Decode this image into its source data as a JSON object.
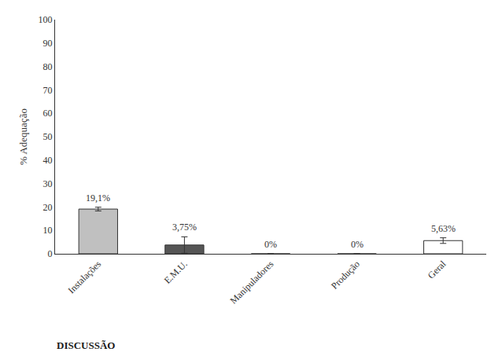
{
  "chart_data": {
    "type": "bar",
    "categories": [
      "Instalações",
      "E.M.U.",
      "Manipuladores",
      "Produção",
      "Geral"
    ],
    "values": [
      19.1,
      3.75,
      0.0,
      0.0,
      5.63
    ],
    "errors": [
      0.8,
      3.5,
      0.0,
      0.0,
      1.2
    ],
    "value_labels": [
      "19,1%",
      "3,75%",
      "0%",
      "0%",
      "5,63%"
    ],
    "data_labels": true,
    "colors": [
      "#c0c0c0",
      "#555555",
      "#ffffff",
      "#ffffff",
      "#ffffff"
    ],
    "ylabel": "% Adequação",
    "ylim": [
      0,
      100
    ],
    "yticks": [
      0,
      10,
      20,
      30,
      40,
      50,
      60,
      70,
      80,
      90,
      100
    ],
    "grid": false,
    "annotations": [
      "DISCUSSÃO"
    ]
  }
}
